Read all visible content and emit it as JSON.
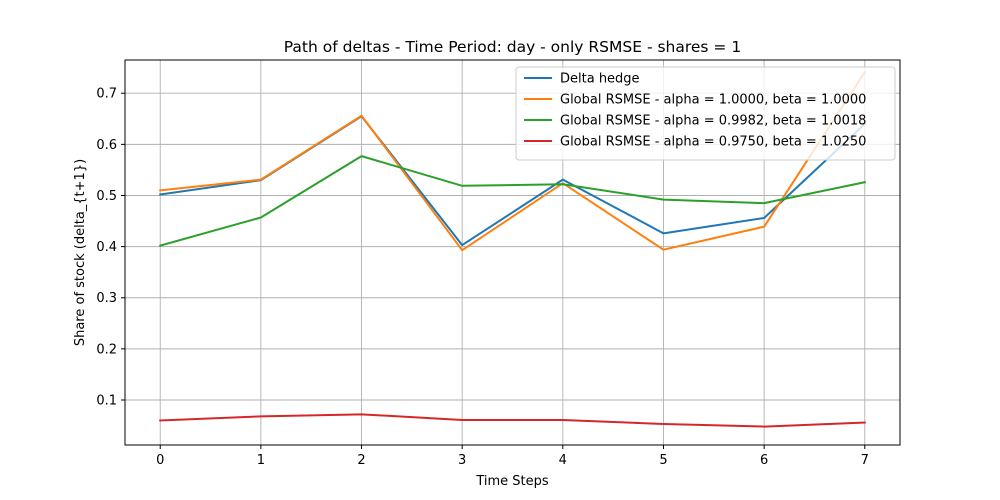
{
  "chart_data": {
    "type": "line",
    "title": "Path of deltas - Time Period: day - only RSMSE - shares = 1",
    "xlabel": "Time Steps",
    "ylabel": "Share of stock (delta_{t+1})",
    "x": [
      0,
      1,
      2,
      3,
      4,
      5,
      6,
      7
    ],
    "xticks": [
      0,
      1,
      2,
      3,
      4,
      5,
      6,
      7
    ],
    "yticks": [
      0.1,
      0.2,
      0.3,
      0.4,
      0.5,
      0.6,
      0.7
    ],
    "xlim": [
      -0.35,
      7.35
    ],
    "ylim": [
      0.012,
      0.765
    ],
    "grid": true,
    "legend_position": "top-right",
    "series": [
      {
        "name": "Delta hedge",
        "color": "#1f77b4",
        "values": [
          0.502,
          0.53,
          0.655,
          0.403,
          0.531,
          0.426,
          0.456,
          0.64
        ]
      },
      {
        "name": "Global RSMSE - alpha = 1.0000, beta = 1.0000",
        "color": "#ff7f0e",
        "values": [
          0.51,
          0.531,
          0.656,
          0.393,
          0.524,
          0.394,
          0.439,
          0.741
        ]
      },
      {
        "name": "Global RSMSE - alpha = 0.9982, beta = 1.0018",
        "color": "#2ca02c",
        "values": [
          0.402,
          0.457,
          0.577,
          0.519,
          0.522,
          0.492,
          0.485,
          0.526
        ]
      },
      {
        "name": "Global RSMSE - alpha = 0.9750, beta = 1.0250",
        "color": "#d62728",
        "values": [
          0.06,
          0.068,
          0.072,
          0.061,
          0.061,
          0.053,
          0.048,
          0.056
        ]
      }
    ]
  }
}
